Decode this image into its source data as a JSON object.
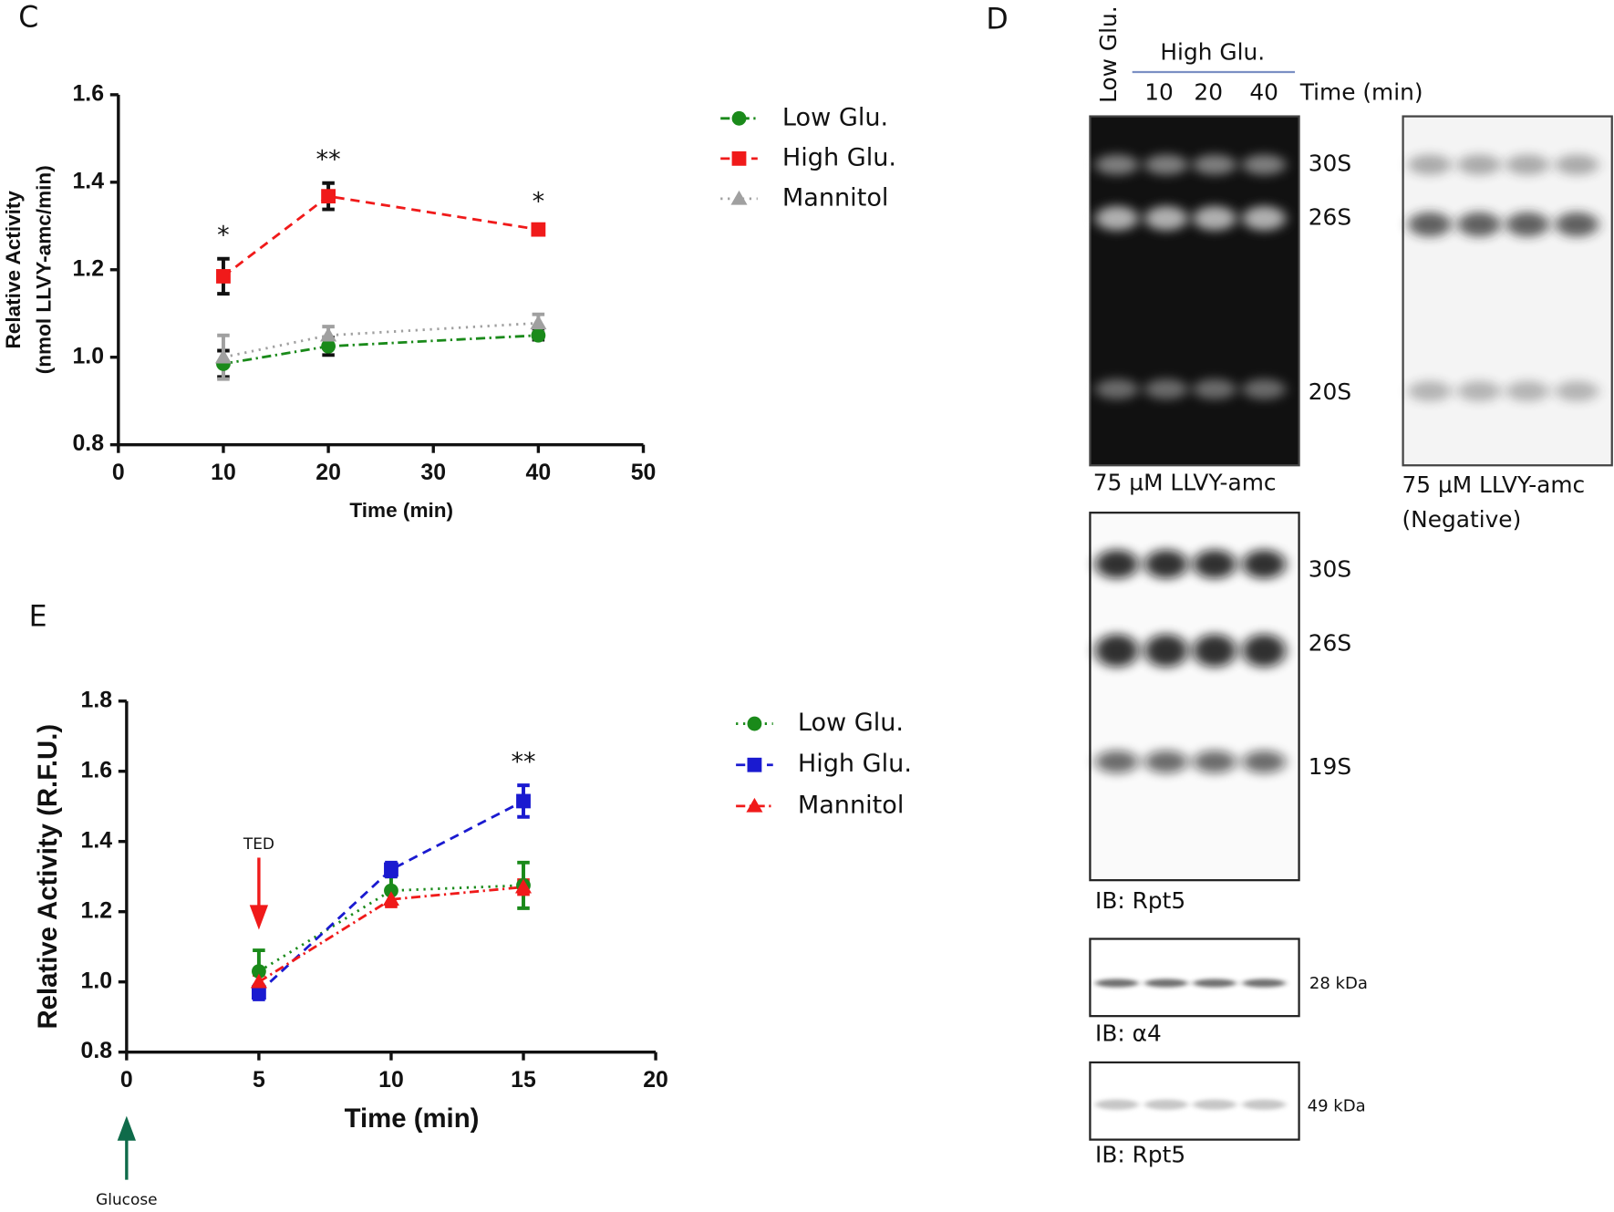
{
  "chart_data": [
    {
      "type": "line",
      "panel_label": "C",
      "ylabel": [
        "Relative Activity",
        "(nmol LLVY-amc/min)"
      ],
      "xlabel": "Time (min)",
      "xlim": [
        0,
        50
      ],
      "xticks": [
        0,
        10,
        20,
        30,
        40,
        50
      ],
      "ylim": [
        0.8,
        1.6
      ],
      "yticks": [
        0.8,
        {
          "value": 1,
          "label": "1.0"
        },
        1.2,
        1.4,
        1.6
      ],
      "legend": "outside-right",
      "series": [
        {
          "name": "Low Glu.",
          "color": "#1a8a1a",
          "error_color": "#111",
          "dash": "dash-dot",
          "marker": "circle",
          "x": [
            10,
            20,
            40
          ],
          "values": [
            0.985,
            1.025,
            1.05
          ],
          "errors": [
            0.03,
            0.02,
            0.01
          ]
        },
        {
          "name": "High Glu.",
          "color": "#f01a1a",
          "error_color": "#111",
          "dash": "dashed",
          "marker": "square",
          "x": [
            10,
            20,
            40
          ],
          "values": [
            1.185,
            1.368,
            1.292
          ],
          "errors": [
            0.04,
            0.03,
            0.01
          ]
        },
        {
          "name": "Mannitol",
          "color": "#a0a0a0",
          "error_color": "#a0a0a0",
          "dash": "dotted",
          "marker": "triangle",
          "x": [
            10,
            20,
            40
          ],
          "values": [
            1.0,
            1.05,
            1.078
          ],
          "errors": [
            0.05,
            0.02,
            0.02
          ]
        }
      ],
      "annotations": [
        {
          "x": 10,
          "text": "*"
        },
        {
          "x": 20,
          "text": "**"
        },
        {
          "x": 40,
          "text": "*"
        }
      ]
    },
    {
      "type": "line",
      "panel_label": "E",
      "ylabel": [
        "Relative Activity (R.F.U.)"
      ],
      "xlabel": "Time (min)",
      "xlim": [
        0,
        20
      ],
      "xticks": [
        0,
        5,
        10,
        15,
        20
      ],
      "ylim": [
        0.8,
        1.8
      ],
      "yticks": [
        0.8,
        {
          "value": 1,
          "label": "1.0"
        },
        1.2,
        1.4,
        1.6,
        1.8
      ],
      "legend": "outside-right",
      "series": [
        {
          "name": "Low Glu.",
          "color": "#1a8a1a",
          "error_color": "#1a8a1a",
          "dash": "dotted",
          "marker": "circle",
          "x": [
            5,
            10,
            15
          ],
          "values": [
            1.03,
            1.26,
            1.275
          ],
          "errors": [
            0.06,
            0.04,
            0.065
          ]
        },
        {
          "name": "High Glu.",
          "color": "#1a1ad0",
          "error_color": "#1a1ad0",
          "dash": "dashed",
          "marker": "square",
          "x": [
            5,
            10,
            15
          ],
          "values": [
            0.97,
            1.32,
            1.515
          ],
          "errors": [
            0.02,
            0.02,
            0.045
          ]
        },
        {
          "name": "Mannitol",
          "color": "#f01a1a",
          "error_color": "#f01a1a",
          "dash": "dash-dot",
          "marker": "triangle",
          "x": [
            5,
            10,
            15
          ],
          "values": [
            1.0,
            1.235,
            1.27
          ],
          "errors": [
            0.02,
            0.02,
            0.02
          ]
        }
      ],
      "annotations": [
        {
          "x": 15,
          "text": "**"
        }
      ],
      "arrows": [
        {
          "x": 5,
          "text": "TED",
          "color": "#f01a1a"
        },
        {
          "x": 0,
          "text": "Glucose",
          "color": "#0f6b4a"
        }
      ]
    }
  ],
  "blots": {
    "panel_label": "D",
    "low": "Low Glu.",
    "high": "High Glu.",
    "lanes": [
      "10",
      "20",
      "40"
    ],
    "time": "Time (min)",
    "gel_bands": [
      "30S",
      "26S",
      "20S"
    ],
    "gel_caption": "75 µM LLVY-amc",
    "negative_caption": [
      "75 µM LLVY-amc",
      "(Negative)"
    ],
    "blot_bands": [
      "30S",
      "26S",
      "19S"
    ],
    "blot_caption": "IB: Rpt5",
    "alpha_size": "28 kDa",
    "alpha_caption": "IB: α4",
    "rpt_size": "49 kDa",
    "rpt_caption": "IB: Rpt5"
  }
}
